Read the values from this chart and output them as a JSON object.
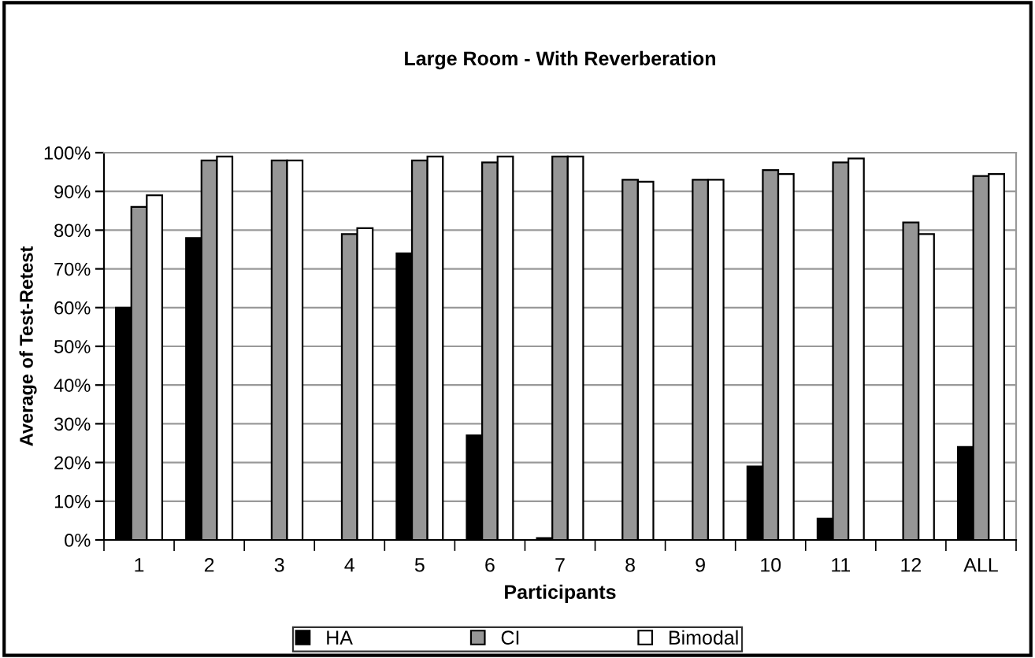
{
  "chart_data": {
    "type": "bar",
    "title": "Large Room - With Reverberation",
    "xlabel": "Participants",
    "ylabel": "Average of Test-Retest",
    "categories": [
      "1",
      "2",
      "3",
      "4",
      "5",
      "6",
      "7",
      "8",
      "9",
      "10",
      "11",
      "12",
      "ALL"
    ],
    "series": [
      {
        "name": "HA",
        "color": "#000000",
        "values": [
          60,
          78,
          null,
          null,
          74,
          27,
          0.5,
          null,
          null,
          19,
          5.5,
          null,
          24
        ]
      },
      {
        "name": "CI",
        "color": "#969696",
        "values": [
          86,
          98,
          98,
          79,
          98,
          97.5,
          99,
          93,
          93,
          95.5,
          97.5,
          82,
          94
        ]
      },
      {
        "name": "Bimodal",
        "color": "#ffffff",
        "values": [
          89,
          99,
          98,
          80.5,
          99,
          99,
          99,
          92.5,
          93,
          94.5,
          98.5,
          79,
          94.5
        ]
      }
    ],
    "ylim": [
      0,
      100
    ],
    "yticks": [
      {
        "value": 0,
        "label": "0%"
      },
      {
        "value": 10,
        "label": "10%"
      },
      {
        "value": 20,
        "label": "20%"
      },
      {
        "value": 30,
        "label": "30%"
      },
      {
        "value": 40,
        "label": "40%"
      },
      {
        "value": 50,
        "label": "50%"
      },
      {
        "value": 60,
        "label": "60%"
      },
      {
        "value": 70,
        "label": "70%"
      },
      {
        "value": 80,
        "label": "80%"
      },
      {
        "value": 90,
        "label": "90%"
      },
      {
        "value": 100,
        "label": "100%"
      }
    ],
    "grid": "y",
    "legend": "bottom"
  }
}
